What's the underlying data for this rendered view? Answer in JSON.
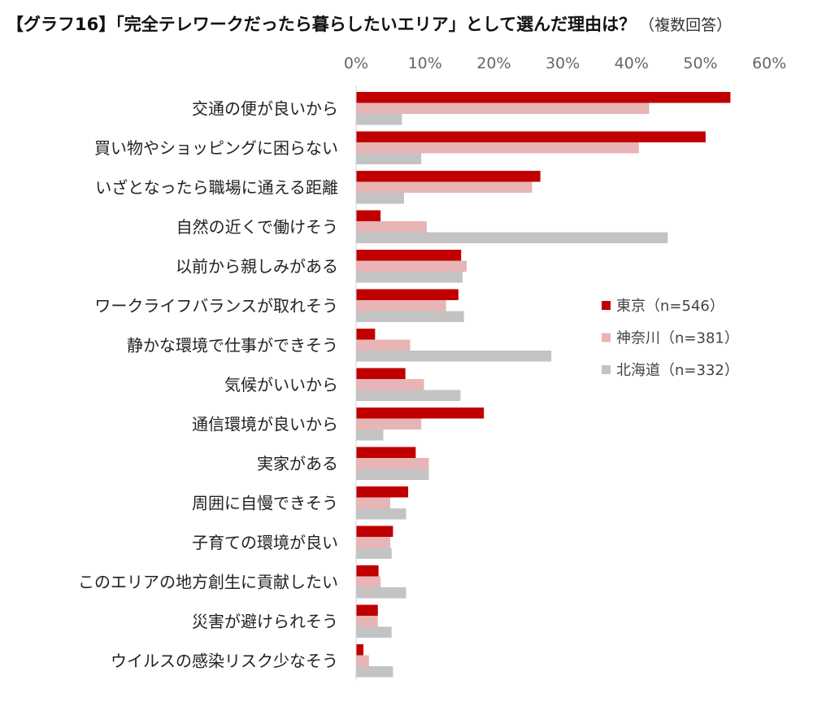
{
  "chart_data": {
    "type": "bar",
    "orientation": "horizontal",
    "title": "【グラフ16】「完全テレワークだったら暮らしたいエリア」として選んだ理由は？",
    "title_note": "（複数回答）",
    "xlim": [
      0,
      60
    ],
    "x_ticks": [
      "0%",
      "10%",
      "20%",
      "30%",
      "40%",
      "50%",
      "60%"
    ],
    "x_tick_values": [
      0,
      10,
      20,
      30,
      40,
      50,
      60
    ],
    "grid": false,
    "legend_position": "right",
    "categories": [
      "交通の便が良いから",
      "買い物やショッピングに困らない",
      "いざとなったら職場に通える距離",
      "自然の近くで働けそう",
      "以前から親しみがある",
      "ワークライフバランスが取れそう",
      "静かな環境で仕事ができそう",
      "気候がいいから",
      "通信環境が良いから",
      "実家がある",
      "周囲に自慢できそう",
      "子育ての環境が良い",
      "このエリアの地方創生に貢献したい",
      "災害が避けられそう",
      "ウイルスの感染リスク少なそう"
    ],
    "series": [
      {
        "name": "東京（n=546）",
        "color": "#c00000",
        "values": [
          54.3,
          50.7,
          26.7,
          3.5,
          15.2,
          14.8,
          2.7,
          7.1,
          18.5,
          8.6,
          7.5,
          5.3,
          3.2,
          3.1,
          1.0
        ]
      },
      {
        "name": "神奈川（n=381）",
        "color": "#e8b4b5",
        "values": [
          42.5,
          41.0,
          25.5,
          10.2,
          16.0,
          13.0,
          7.8,
          9.8,
          9.4,
          10.5,
          4.9,
          4.9,
          3.5,
          3.1,
          1.8
        ]
      },
      {
        "name": "北海道（n=332）",
        "color": "#c3c3c3",
        "values": [
          6.6,
          9.4,
          6.9,
          45.2,
          15.4,
          15.6,
          28.3,
          15.1,
          3.9,
          10.5,
          7.2,
          5.1,
          7.2,
          5.1,
          5.3
        ]
      }
    ]
  }
}
